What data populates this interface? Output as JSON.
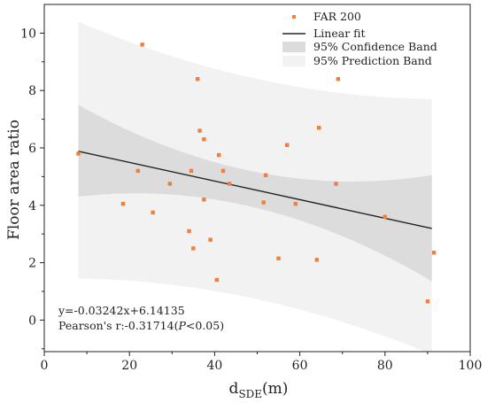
{
  "chart_data": {
    "type": "scatter",
    "xlabel": "d",
    "xlabel_sub": "SDE",
    "xlabel_unit": "(m)",
    "ylabel": "Floor area ratio",
    "xlim": [
      0,
      100
    ],
    "ylim": [
      -1.1,
      11
    ],
    "xticks": [
      "0",
      "20",
      "40",
      "60",
      "80",
      "100"
    ],
    "yticks": [
      "0",
      "2",
      "4",
      "6",
      "8",
      "10"
    ],
    "grid": false,
    "legend_position": "top-right",
    "legend": {
      "points": "FAR 200",
      "fit": "Linear fit",
      "confidence": "95% Confidence Band",
      "prediction": "95% Prediction Band"
    },
    "colors": {
      "points": "#f07f3c",
      "fit": "#222222",
      "confidence": "#dcdcdc",
      "prediction": "#f2f2f2"
    },
    "fit": {
      "slope": -0.03242,
      "intercept": 6.14135,
      "x_range": [
        8,
        91
      ]
    },
    "bands": {
      "x": [
        8,
        91
      ],
      "confidence_upper": [
        7.5,
        5.05
      ],
      "confidence_lower": [
        4.3,
        1.35
      ],
      "prediction_upper": [
        10.4,
        7.7
      ],
      "prediction_lower": [
        1.45,
        -1.2
      ]
    },
    "annotation": {
      "equation": "y=-0.03242x+6.14135",
      "pearson_prefix": "Pearson's r:-0.31714(",
      "pearson_p": "P",
      "pearson_suffix": "<0.05)"
    },
    "series": [
      {
        "name": "FAR 200",
        "points": [
          [
            8,
            5.8
          ],
          [
            18.5,
            4.05
          ],
          [
            22,
            5.2
          ],
          [
            23,
            9.6
          ],
          [
            25.5,
            3.75
          ],
          [
            29.5,
            4.75
          ],
          [
            34,
            3.1
          ],
          [
            34.5,
            5.2
          ],
          [
            35,
            2.5
          ],
          [
            36,
            8.4
          ],
          [
            36.5,
            6.6
          ],
          [
            37.5,
            4.2
          ],
          [
            37.5,
            6.3
          ],
          [
            39,
            2.8
          ],
          [
            40.5,
            1.4
          ],
          [
            41,
            5.75
          ],
          [
            42,
            5.2
          ],
          [
            43.5,
            4.75
          ],
          [
            51.5,
            4.1
          ],
          [
            52,
            5.05
          ],
          [
            55,
            2.15
          ],
          [
            57,
            6.1
          ],
          [
            59,
            4.05
          ],
          [
            64,
            2.1
          ],
          [
            64.5,
            6.7
          ],
          [
            68.5,
            4.75
          ],
          [
            69,
            8.4
          ],
          [
            80,
            3.6
          ],
          [
            90,
            0.65
          ],
          [
            91.5,
            2.35
          ]
        ]
      }
    ]
  }
}
